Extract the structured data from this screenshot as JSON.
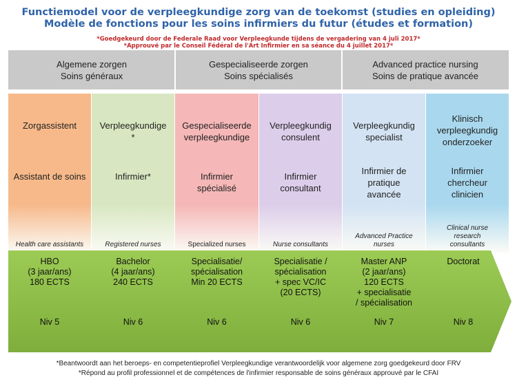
{
  "title": {
    "line1": "Functiemodel voor de verpleegkundige zorg van de  toekomst (studies en opleiding)",
    "line2": "Modèle de fonctions pour les soins infirmiers du futur (études et formation)"
  },
  "approval": {
    "nl": "*Goedgekeurd door de Federale Raad voor Verpleegkunde tijdens de vergadering van 4 juli 2017*",
    "fr": "*Approuvé par le Conseil Fédéral de l'Art Infirmier en sa séance du 4 juillet 2017*"
  },
  "categories": [
    {
      "nl": "Algemene zorgen",
      "fr": "Soins généraux"
    },
    {
      "nl": "Gespecialiseerde zorgen",
      "fr": "Soins spécialisés"
    },
    {
      "nl": "Advanced practice nursing",
      "fr": "Soins de pratique avancée"
    }
  ],
  "columns": [
    {
      "role_nl": "Zorgassistent",
      "role_fr": "Assistant de soins",
      "role_en": "Health care assistants",
      "education": "HBO\n(3 jaar/ans)\n180 ECTS",
      "level": "Niv 5",
      "color": "#f7b98a"
    },
    {
      "role_nl": "Verpleegkundige\n*",
      "role_fr": "Infirmier*",
      "role_en": "Registered nurses",
      "education": "Bachelor\n(4 jaar/ans)\n240 ECTS",
      "level": "Niv 6",
      "color": "#d8e7c1"
    },
    {
      "role_nl": "Gespecialiseerde\nverpleegkundige",
      "role_fr": "Infirmier\nspécialisé",
      "role_en": "Specialized nurses",
      "education": "Specialisatie/\nspécialisation\nMin 20 ECTS",
      "level": "Niv 6",
      "color": "#f5b7b7"
    },
    {
      "role_nl": "Verpleegkundig\nconsulent",
      "role_fr": "Infirmier\nconsultant",
      "role_en": "Nurse consultants",
      "education": "Specialisatie /\nspécialisation\n+ spec VC/IC\n(20 ECTS)",
      "level": "Niv 6",
      "color": "#dccdea"
    },
    {
      "role_nl": "Verpleegkundig\nspecialist",
      "role_fr": "Infirmier de\npratique\navancée",
      "role_en": "Advanced Practice\nnurses",
      "education": "Master ANP\n(2 jaar/ans)\n120 ECTS\n+ specialisatie\n/ spécialisation",
      "level": "Niv 7",
      "color": "#d3e3f3"
    },
    {
      "role_nl": "Klinisch\nverpleegkundig\nonderzoeker",
      "role_fr": "Infirmier\nchercheur\nclinicien",
      "role_en": "Clinical nurse\nresearch\nconsultants",
      "education": "Doctorat",
      "level": "Niv 8",
      "color": "#a9d8ee"
    }
  ],
  "footnote": {
    "nl": "*Beantwoordt aan het beroeps- en competentieprofiel Verpleegkundige verantwoordelijk voor algemene zorg goedgekeurd door FRV",
    "fr": "*Répond au profil professionnel et de compétences de l'infirmier responsable de soins généraux approuvé par le CFAI"
  },
  "colors": {
    "title": "#2f63a8",
    "approval": "#c0282a",
    "category_header": "#c9c9c9",
    "arrow": "#8fbf4a"
  }
}
